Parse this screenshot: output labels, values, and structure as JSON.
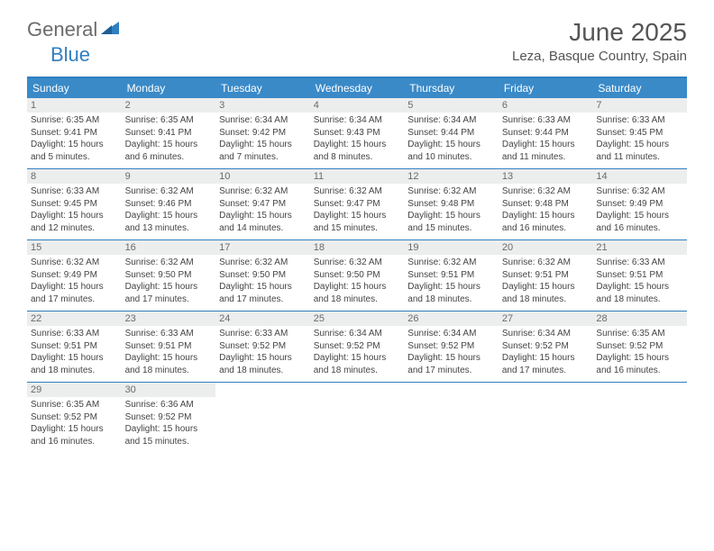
{
  "brand": {
    "part1": "General",
    "part2": "Blue"
  },
  "title": "June 2025",
  "location": "Leza, Basque Country, Spain",
  "colors": {
    "header_bg": "#3a8ac8",
    "accent": "#2f7fc1",
    "daynum_bg": "#eceded",
    "text_gray": "#6b6b6b"
  },
  "calendar": {
    "type": "calendar-table",
    "columns": [
      "Sunday",
      "Monday",
      "Tuesday",
      "Wednesday",
      "Thursday",
      "Friday",
      "Saturday"
    ],
    "weeks": [
      [
        {
          "d": "1",
          "sr": "6:35 AM",
          "ss": "9:41 PM",
          "dl": "15 hours and 5 minutes."
        },
        {
          "d": "2",
          "sr": "6:35 AM",
          "ss": "9:41 PM",
          "dl": "15 hours and 6 minutes."
        },
        {
          "d": "3",
          "sr": "6:34 AM",
          "ss": "9:42 PM",
          "dl": "15 hours and 7 minutes."
        },
        {
          "d": "4",
          "sr": "6:34 AM",
          "ss": "9:43 PM",
          "dl": "15 hours and 8 minutes."
        },
        {
          "d": "5",
          "sr": "6:34 AM",
          "ss": "9:44 PM",
          "dl": "15 hours and 10 minutes."
        },
        {
          "d": "6",
          "sr": "6:33 AM",
          "ss": "9:44 PM",
          "dl": "15 hours and 11 minutes."
        },
        {
          "d": "7",
          "sr": "6:33 AM",
          "ss": "9:45 PM",
          "dl": "15 hours and 11 minutes."
        }
      ],
      [
        {
          "d": "8",
          "sr": "6:33 AM",
          "ss": "9:45 PM",
          "dl": "15 hours and 12 minutes."
        },
        {
          "d": "9",
          "sr": "6:32 AM",
          "ss": "9:46 PM",
          "dl": "15 hours and 13 minutes."
        },
        {
          "d": "10",
          "sr": "6:32 AM",
          "ss": "9:47 PM",
          "dl": "15 hours and 14 minutes."
        },
        {
          "d": "11",
          "sr": "6:32 AM",
          "ss": "9:47 PM",
          "dl": "15 hours and 15 minutes."
        },
        {
          "d": "12",
          "sr": "6:32 AM",
          "ss": "9:48 PM",
          "dl": "15 hours and 15 minutes."
        },
        {
          "d": "13",
          "sr": "6:32 AM",
          "ss": "9:48 PM",
          "dl": "15 hours and 16 minutes."
        },
        {
          "d": "14",
          "sr": "6:32 AM",
          "ss": "9:49 PM",
          "dl": "15 hours and 16 minutes."
        }
      ],
      [
        {
          "d": "15",
          "sr": "6:32 AM",
          "ss": "9:49 PM",
          "dl": "15 hours and 17 minutes."
        },
        {
          "d": "16",
          "sr": "6:32 AM",
          "ss": "9:50 PM",
          "dl": "15 hours and 17 minutes."
        },
        {
          "d": "17",
          "sr": "6:32 AM",
          "ss": "9:50 PM",
          "dl": "15 hours and 17 minutes."
        },
        {
          "d": "18",
          "sr": "6:32 AM",
          "ss": "9:50 PM",
          "dl": "15 hours and 18 minutes."
        },
        {
          "d": "19",
          "sr": "6:32 AM",
          "ss": "9:51 PM",
          "dl": "15 hours and 18 minutes."
        },
        {
          "d": "20",
          "sr": "6:32 AM",
          "ss": "9:51 PM",
          "dl": "15 hours and 18 minutes."
        },
        {
          "d": "21",
          "sr": "6:33 AM",
          "ss": "9:51 PM",
          "dl": "15 hours and 18 minutes."
        }
      ],
      [
        {
          "d": "22",
          "sr": "6:33 AM",
          "ss": "9:51 PM",
          "dl": "15 hours and 18 minutes."
        },
        {
          "d": "23",
          "sr": "6:33 AM",
          "ss": "9:51 PM",
          "dl": "15 hours and 18 minutes."
        },
        {
          "d": "24",
          "sr": "6:33 AM",
          "ss": "9:52 PM",
          "dl": "15 hours and 18 minutes."
        },
        {
          "d": "25",
          "sr": "6:34 AM",
          "ss": "9:52 PM",
          "dl": "15 hours and 18 minutes."
        },
        {
          "d": "26",
          "sr": "6:34 AM",
          "ss": "9:52 PM",
          "dl": "15 hours and 17 minutes."
        },
        {
          "d": "27",
          "sr": "6:34 AM",
          "ss": "9:52 PM",
          "dl": "15 hours and 17 minutes."
        },
        {
          "d": "28",
          "sr": "6:35 AM",
          "ss": "9:52 PM",
          "dl": "15 hours and 16 minutes."
        }
      ],
      [
        {
          "d": "29",
          "sr": "6:35 AM",
          "ss": "9:52 PM",
          "dl": "15 hours and 16 minutes."
        },
        {
          "d": "30",
          "sr": "6:36 AM",
          "ss": "9:52 PM",
          "dl": "15 hours and 15 minutes."
        },
        null,
        null,
        null,
        null,
        null
      ]
    ],
    "labels": {
      "sunrise": "Sunrise:",
      "sunset": "Sunset:",
      "daylight": "Daylight:"
    }
  }
}
